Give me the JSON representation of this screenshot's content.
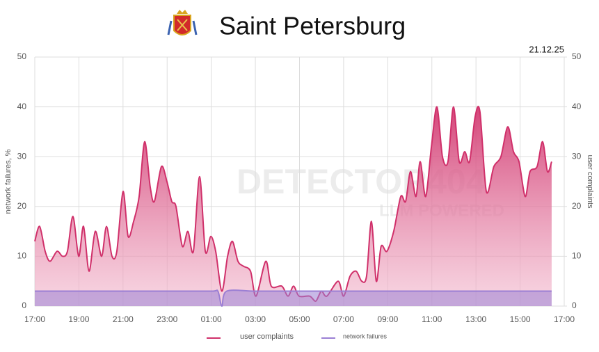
{
  "chart_data": {
    "type": "area",
    "title": "Saint Petersburg",
    "date": "21.12.25",
    "watermark": [
      "DETECTOR404",
      "LLM POWERED"
    ],
    "ylabel": "network failures, %",
    "y2label": "user complaints",
    "xlim": [
      0,
      24
    ],
    "xticks": [
      {
        "value": 0,
        "label": "17:00"
      },
      {
        "value": 2,
        "label": "19:00"
      },
      {
        "value": 4,
        "label": "21:00"
      },
      {
        "value": 6,
        "label": "23:00"
      },
      {
        "value": 8,
        "label": "01:00"
      },
      {
        "value": 10,
        "label": "03:00"
      },
      {
        "value": 12,
        "label": "05:00"
      },
      {
        "value": 14,
        "label": "07:00"
      },
      {
        "value": 16,
        "label": "09:00"
      },
      {
        "value": 18,
        "label": "11:00"
      },
      {
        "value": 20,
        "label": "13:00"
      },
      {
        "value": 22,
        "label": "15:00"
      },
      {
        "value": 24,
        "label": "17:00"
      }
    ],
    "ylim": [
      0,
      50
    ],
    "yticks": [
      0,
      10,
      20,
      30,
      40,
      50
    ],
    "y2lim": [
      0,
      50
    ],
    "y2ticks": [
      0,
      10,
      20,
      30,
      40,
      50
    ],
    "grid": true,
    "legend": "bottom",
    "series": [
      {
        "name": "user complaints",
        "color": "#d0306a",
        "axis": "y2",
        "x": [
          0,
          0.22,
          0.47,
          0.69,
          1.01,
          1.26,
          1.48,
          1.73,
          1.99,
          2.21,
          2.46,
          2.74,
          3.03,
          3.25,
          3.5,
          3.72,
          4.0,
          4.23,
          4.48,
          4.73,
          4.98,
          5.23,
          5.42,
          5.74,
          5.99,
          6.21,
          6.4,
          6.69,
          6.94,
          7.19,
          7.47,
          7.73,
          7.98,
          8.2,
          8.48,
          8.74,
          8.96,
          9.21,
          9.46,
          9.78,
          10.03,
          10.47,
          10.72,
          11.2,
          11.48,
          11.73,
          11.98,
          12.46,
          12.74,
          12.99,
          13.24,
          13.75,
          14.0,
          14.29,
          14.57,
          14.82,
          15.04,
          15.26,
          15.48,
          15.7,
          15.96,
          16.27,
          16.59,
          16.81,
          17.03,
          17.28,
          17.47,
          17.72,
          17.98,
          18.23,
          18.48,
          18.73,
          18.98,
          19.24,
          19.49,
          19.71,
          19.96,
          20.18,
          20.47,
          20.81,
          21.13,
          21.44,
          21.7,
          21.95,
          22.23,
          22.45,
          22.77,
          23.02,
          23.24,
          23.43
        ],
        "values": [
          13,
          16,
          11,
          9,
          11,
          10,
          11,
          18,
          10,
          16,
          7,
          15,
          10,
          16,
          10,
          11,
          23,
          14,
          17,
          22,
          33,
          24,
          21,
          28,
          25,
          21,
          20,
          12,
          15,
          11,
          26,
          11,
          14,
          11,
          3,
          10,
          13,
          9,
          8,
          7,
          2,
          9,
          4,
          4,
          2,
          4,
          2,
          2,
          1,
          3,
          2,
          5,
          2,
          6,
          7,
          5,
          6,
          17,
          5,
          12,
          11,
          15,
          22,
          21,
          27,
          22,
          29,
          22,
          32,
          40,
          30,
          29,
          40,
          29,
          31,
          29,
          38,
          39,
          23,
          28,
          30,
          36,
          31,
          29,
          22,
          27,
          28,
          33,
          27,
          29
        ]
      },
      {
        "name": "network failures",
        "color": "#9b7fd4",
        "x": [
          0,
          2,
          4,
          6,
          8,
          8.3,
          8.48,
          8.7,
          10,
          12,
          14,
          16,
          18,
          20,
          22,
          23.43
        ],
        "values": [
          3,
          3,
          3,
          3,
          3,
          3,
          0,
          3,
          3,
          3,
          3,
          3,
          3,
          3,
          3,
          3
        ]
      }
    ]
  }
}
